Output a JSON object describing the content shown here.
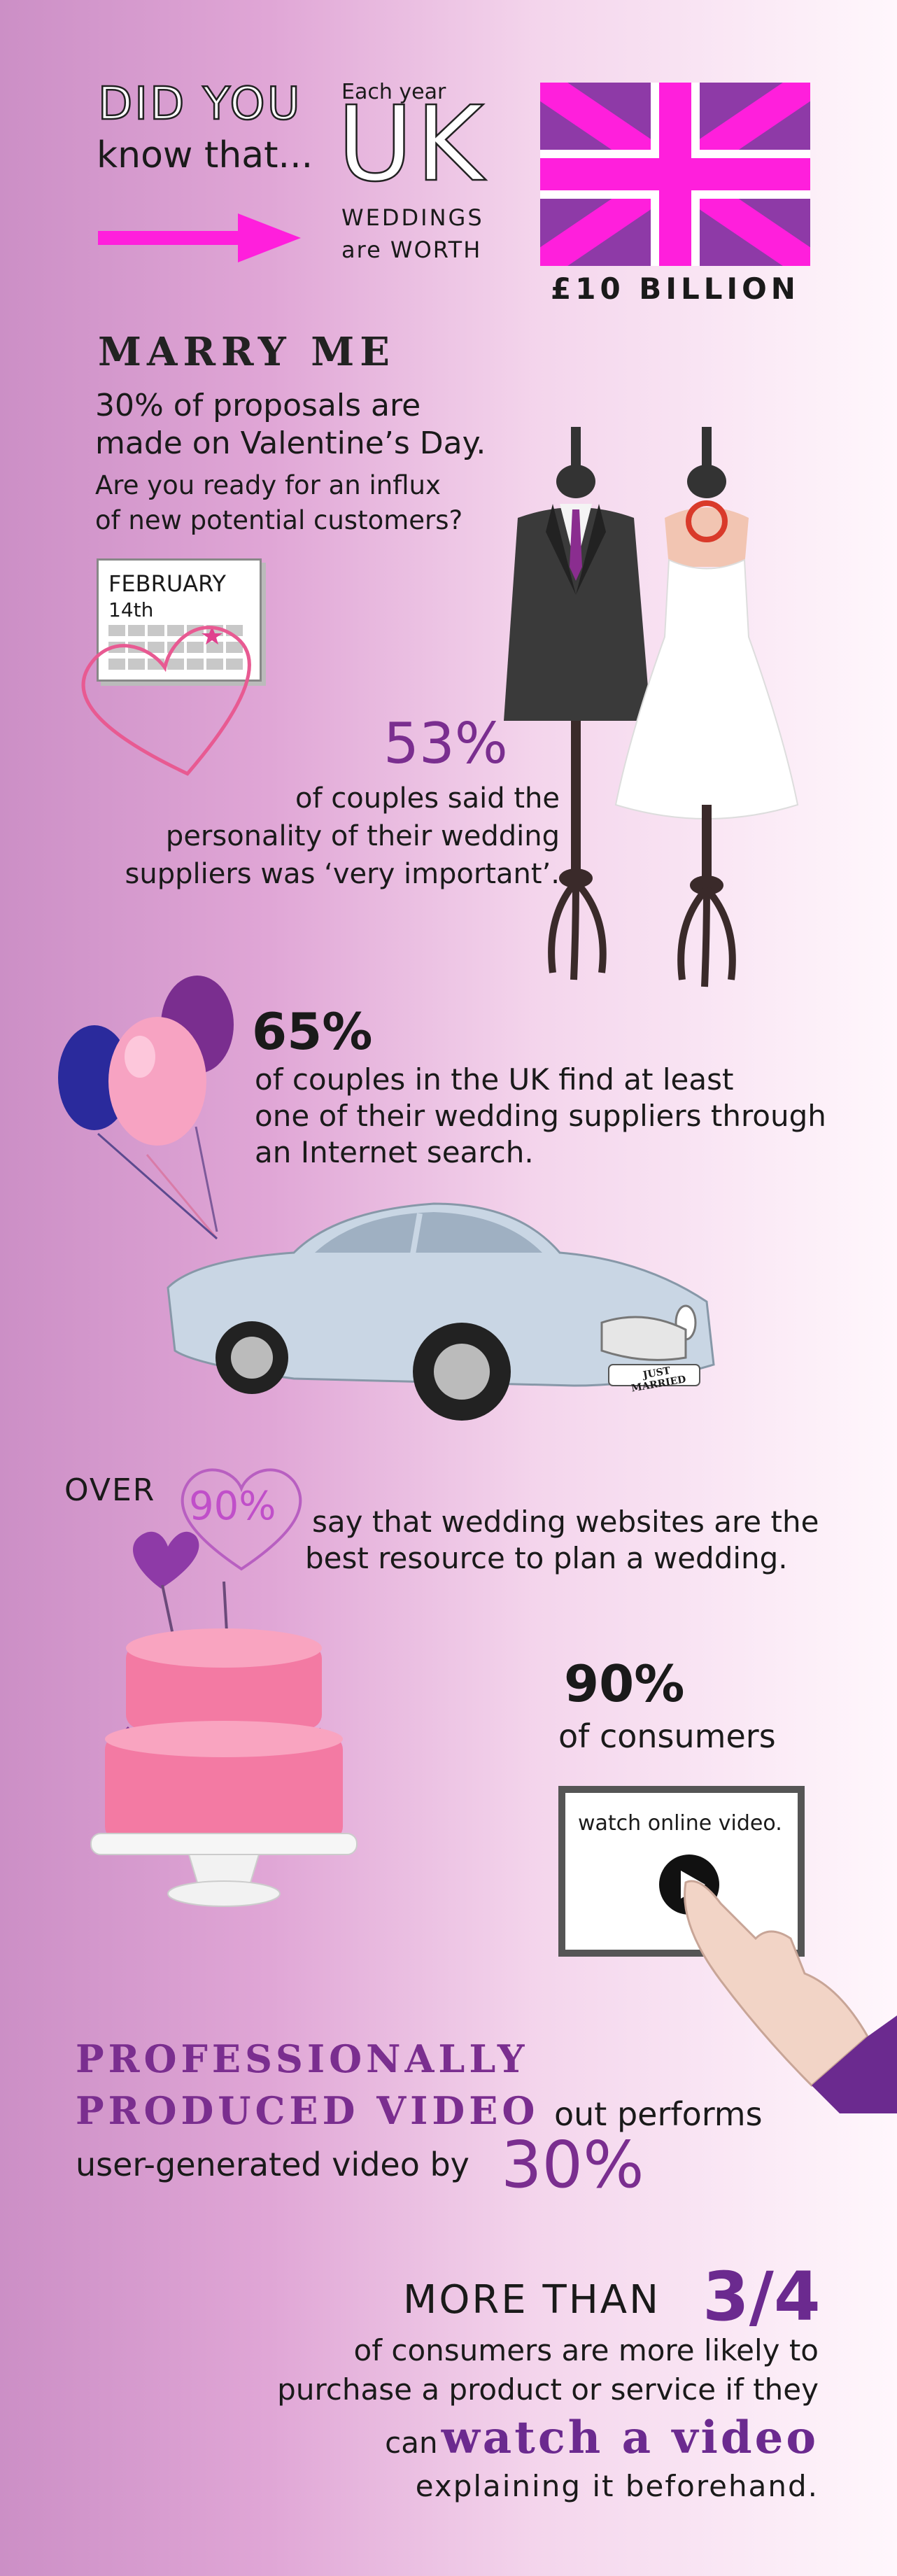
{
  "header": {
    "did_you": "DID YOU",
    "know_that": "know that...",
    "each_year": "Each year",
    "uk": "UK",
    "weddings": "WEDDINGS",
    "are_worth": "are WORTH",
    "amount": "£10 BILLION"
  },
  "marry": {
    "title": "MARRY ME",
    "line1": "30% of proposals are",
    "line2": "made on Valentine’s Day.",
    "line3": "Are you ready for an influx",
    "line4": "of new potential customers?",
    "calendar_month": "FEBRUARY",
    "calendar_day": "14th"
  },
  "stat53": {
    "value": "53%",
    "line1": "of couples said the",
    "line2": "personality of their wedding",
    "line3": "suppliers was ‘very important’."
  },
  "stat65": {
    "value": "65%",
    "line1": "of couples in the UK find at least",
    "line2": "one of their wedding suppliers through",
    "line3": "an Internet search."
  },
  "car": {
    "plate_line1": "JUST",
    "plate_line2": "MARRIED"
  },
  "over90": {
    "over": "OVER",
    "value": "90%",
    "line1": "say that wedding websites are the",
    "line2": "best resource to plan a wedding."
  },
  "consumers90": {
    "value": "90%",
    "line1": "of consumers",
    "screen_text": "watch online video."
  },
  "video": {
    "line1": "PROFESSIONALLY",
    "line2a": "PRODUCED VIDEO",
    "line2b": "out performs",
    "line3": "user-generated video by",
    "value": "30%"
  },
  "three_quarters": {
    "more_than": "MORE THAN",
    "value": "3/4",
    "line1": "of consumers are more likely to",
    "line2": "purchase a product or service if they",
    "line3a": "can",
    "line3b": "watch a video",
    "line4": "explaining it beforehand."
  },
  "colors": {
    "magenta": "#ff1fdc",
    "purple": "#7a2e8f",
    "flag_purple": "#8e3aa7"
  }
}
